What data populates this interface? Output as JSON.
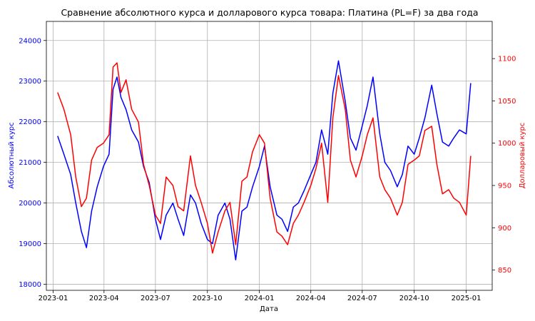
{
  "chart_data": {
    "type": "line",
    "title": "Сравнение абсолютного курса и долларового курса товара: Платина (PL=F) за два года",
    "xlabel": "Дата",
    "ylabel_left": "Абсолютный курс",
    "ylabel_right": "Долларовый курс",
    "x_ticks": [
      "2023-01",
      "2023-04",
      "2023-07",
      "2023-10",
      "2024-01",
      "2024-04",
      "2024-07",
      "2024-10",
      "2025-01"
    ],
    "y_left_ticks": [
      18000,
      19000,
      20000,
      21000,
      22000,
      23000,
      24000
    ],
    "y_right_ticks": [
      850,
      900,
      950,
      1000,
      1050,
      1100
    ],
    "ylim_left": [
      17850,
      24470
    ],
    "ylim_right": [
      826,
      1144
    ],
    "grid": true,
    "colors": {
      "left": "#0000ff",
      "right": "#ff0000"
    },
    "series": [
      {
        "axis": "left",
        "color": "#0000ff",
        "x": [
          "2023-01-09",
          "2023-01-20",
          "2023-02-01",
          "2023-02-10",
          "2023-02-20",
          "2023-03-01",
          "2023-03-10",
          "2023-03-20",
          "2023-03-31",
          "2023-04-10",
          "2023-04-17",
          "2023-04-24",
          "2023-05-01",
          "2023-05-10",
          "2023-05-20",
          "2023-06-01",
          "2023-06-10",
          "2023-06-20",
          "2023-07-01",
          "2023-07-10",
          "2023-07-20",
          "2023-08-01",
          "2023-08-10",
          "2023-08-20",
          "2023-09-01",
          "2023-09-10",
          "2023-09-20",
          "2023-10-01",
          "2023-10-10",
          "2023-10-20",
          "2023-11-01",
          "2023-11-10",
          "2023-11-20",
          "2023-12-01",
          "2023-12-10",
          "2023-12-20",
          "2024-01-01",
          "2024-01-10",
          "2024-01-20",
          "2024-02-01",
          "2024-02-10",
          "2024-02-20",
          "2024-03-01",
          "2024-03-10",
          "2024-03-20",
          "2024-04-01",
          "2024-04-10",
          "2024-04-20",
          "2024-05-01",
          "2024-05-10",
          "2024-05-20",
          "2024-06-01",
          "2024-06-10",
          "2024-06-20",
          "2024-07-01",
          "2024-07-10",
          "2024-07-20",
          "2024-08-01",
          "2024-08-10",
          "2024-08-20",
          "2024-09-01",
          "2024-09-10",
          "2024-09-20",
          "2024-10-01",
          "2024-10-10",
          "2024-10-20",
          "2024-11-01",
          "2024-11-10",
          "2024-11-20",
          "2024-12-01",
          "2024-12-10",
          "2024-12-20",
          "2025-01-01",
          "2025-01-09"
        ],
        "values": [
          21650,
          21200,
          20700,
          20000,
          19300,
          18900,
          19800,
          20400,
          20900,
          21200,
          22800,
          23100,
          22600,
          22300,
          21800,
          21500,
          20900,
          20500,
          19600,
          19100,
          19700,
          20000,
          19600,
          19200,
          20200,
          20000,
          19500,
          19100,
          19000,
          19700,
          20000,
          19600,
          18600,
          19800,
          19900,
          20400,
          20900,
          21400,
          20400,
          19700,
          19600,
          19300,
          19900,
          20000,
          20300,
          20700,
          21000,
          21800,
          21200,
          22700,
          23500,
          22500,
          21600,
          21300,
          21900,
          22400,
          23100,
          21700,
          21000,
          20800,
          20400,
          20700,
          21400,
          21200,
          21600,
          22100,
          22900,
          22200,
          21500,
          21400,
          21600,
          21800,
          21700,
          22950
        ]
      },
      {
        "axis": "right",
        "color": "#ff0000",
        "x": [
          "2023-01-09",
          "2023-01-20",
          "2023-02-01",
          "2023-02-10",
          "2023-02-20",
          "2023-03-01",
          "2023-03-10",
          "2023-03-20",
          "2023-03-31",
          "2023-04-10",
          "2023-04-17",
          "2023-04-24",
          "2023-05-01",
          "2023-05-10",
          "2023-05-20",
          "2023-06-01",
          "2023-06-10",
          "2023-06-20",
          "2023-07-01",
          "2023-07-10",
          "2023-07-20",
          "2023-08-01",
          "2023-08-10",
          "2023-08-20",
          "2023-09-01",
          "2023-09-10",
          "2023-09-20",
          "2023-10-01",
          "2023-10-10",
          "2023-10-20",
          "2023-11-01",
          "2023-11-10",
          "2023-11-20",
          "2023-12-01",
          "2023-12-10",
          "2023-12-20",
          "2024-01-01",
          "2024-01-10",
          "2024-01-20",
          "2024-02-01",
          "2024-02-10",
          "2024-02-20",
          "2024-03-01",
          "2024-03-10",
          "2024-03-20",
          "2024-04-01",
          "2024-04-10",
          "2024-04-20",
          "2024-05-01",
          "2024-05-10",
          "2024-05-20",
          "2024-06-01",
          "2024-06-10",
          "2024-06-20",
          "2024-07-01",
          "2024-07-10",
          "2024-07-20",
          "2024-08-01",
          "2024-08-10",
          "2024-08-20",
          "2024-09-01",
          "2024-09-10",
          "2024-09-20",
          "2024-10-01",
          "2024-10-10",
          "2024-10-20",
          "2024-11-01",
          "2024-11-10",
          "2024-11-20",
          "2024-12-01",
          "2024-12-10",
          "2024-12-20",
          "2025-01-01",
          "2025-01-09"
        ],
        "values": [
          1060,
          1040,
          1010,
          960,
          925,
          935,
          980,
          995,
          1000,
          1010,
          1090,
          1095,
          1060,
          1075,
          1040,
          1025,
          975,
          950,
          915,
          905,
          960,
          950,
          925,
          920,
          985,
          950,
          930,
          905,
          870,
          895,
          920,
          930,
          880,
          955,
          960,
          990,
          1010,
          1000,
          935,
          895,
          890,
          880,
          905,
          915,
          930,
          950,
          970,
          1000,
          930,
          1030,
          1080,
          1040,
          980,
          960,
          985,
          1010,
          1030,
          960,
          945,
          935,
          915,
          930,
          975,
          980,
          985,
          1015,
          1020,
          975,
          940,
          945,
          935,
          930,
          915,
          985
        ]
      }
    ]
  }
}
